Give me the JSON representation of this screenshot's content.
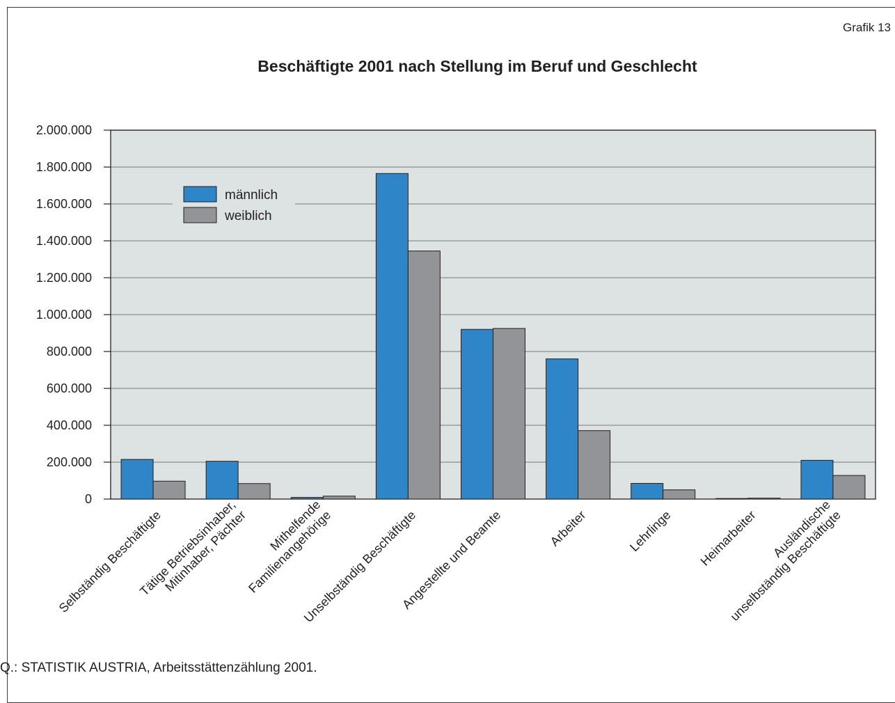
{
  "header": {
    "grafik_label": "Grafik 13"
  },
  "chart_data": {
    "type": "bar",
    "title": "Beschäftigte 2001 nach Stellung im Beruf und Geschlecht",
    "categories": [
      [
        "Selbständig Beschäftigte"
      ],
      [
        "Tätige Betriebsinhaber,",
        "Mitinhaber, Pächter"
      ],
      [
        "Mithelfende",
        "Familienangehörige"
      ],
      [
        "Unselbständig Beschäftigte"
      ],
      [
        "Angestellte und Beamte"
      ],
      [
        "Arbeiter"
      ],
      [
        "Lehrlinge"
      ],
      [
        "Heimarbeiter"
      ],
      [
        "Ausländische",
        "unselbständig Beschäftigte"
      ]
    ],
    "series": [
      {
        "name": "männlich",
        "color": "#2e86c9",
        "values": [
          215000,
          205000,
          9000,
          1765000,
          920000,
          760000,
          85000,
          3000,
          210000
        ]
      },
      {
        "name": "weiblich",
        "color": "#929497",
        "values": [
          97000,
          84000,
          16000,
          1345000,
          925000,
          371000,
          50000,
          5000,
          128000
        ]
      }
    ],
    "ylim": [
      0,
      2000000
    ],
    "ytick_step": 200000,
    "ytick_labels": [
      "0",
      "200.000",
      "400.000",
      "600.000",
      "800.000",
      "1.000.000",
      "1.200.000",
      "1.400.000",
      "1.600.000",
      "1.800.000",
      "2.000.000"
    ],
    "grid": true,
    "legend_position": "top-left",
    "plot_background": "#dde3e3"
  },
  "footer": {
    "source": "Q.: STATISTIK AUSTRIA, Arbeitsstättenzählung 2001."
  }
}
